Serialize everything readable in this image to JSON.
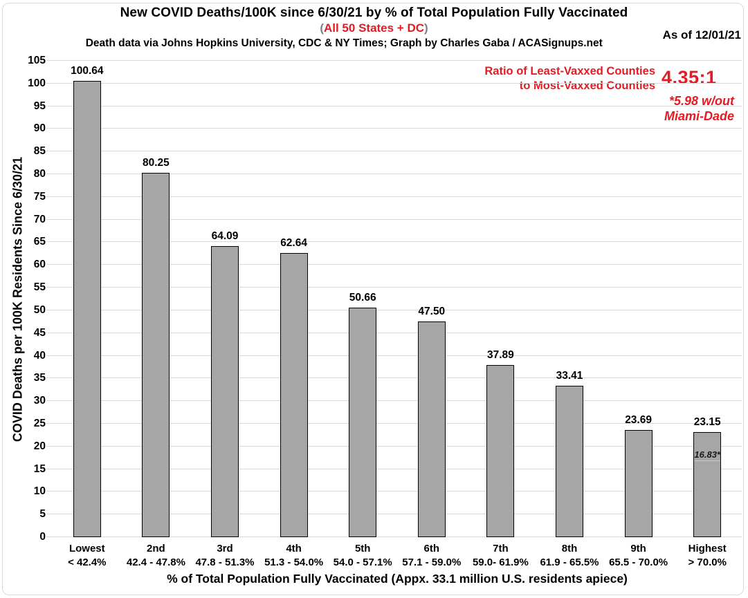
{
  "header": {
    "title": "New COVID Deaths/100K since 6/30/21 by % of Total Population Fully Vaccinated",
    "subtitle_open": "(",
    "subtitle": "All 50 States + DC",
    "subtitle_close": ")",
    "source": "Death data via Johns Hopkins University, CDC & NY Times; Graph by Charles Gaba / ACASignups.net",
    "as_of": "As of 12/01/21"
  },
  "annotation": {
    "line1": "Ratio of Least-Vaxxed Counties",
    "line2": "to Most-Vaxxed Counties",
    "value": "4.35:1",
    "footnote1": "*5.98 w/out",
    "footnote2": "Miami-Dade"
  },
  "chart_data": {
    "type": "bar",
    "title": "New COVID Deaths/100K since 6/30/21 by % of Total Population Fully Vaccinated",
    "subtitle": "All 50 States + DC",
    "categories": [
      "Lowest",
      "2nd",
      "3rd",
      "4th",
      "5th",
      "6th",
      "7th",
      "8th",
      "9th",
      "Highest"
    ],
    "category_ranges": [
      "< 42.4%",
      "42.4 - 47.8%",
      "47.8 - 51.3%",
      "51.3 - 54.0%",
      "54.0 - 57.1%",
      "57.1 - 59.0%",
      "59.0- 61.9%",
      "61.9 - 65.5%",
      "65.5 - 70.0%",
      "> 70.0%"
    ],
    "values": [
      100.64,
      80.25,
      64.09,
      62.64,
      50.66,
      47.5,
      37.89,
      33.41,
      23.69,
      23.15
    ],
    "bar_labels": [
      "100.64",
      "80.25",
      "64.09",
      "62.64",
      "50.66",
      "47.50",
      "37.89",
      "33.41",
      "23.69",
      "23.15"
    ],
    "special_marker": {
      "bar_index": 9,
      "value": 16.83,
      "label": "16.83*"
    },
    "xlabel": "% of Total Population Fully Vaccinated (Appx. 33.1 million U.S. residents apiece)",
    "ylabel": "COVID Deaths per 100K Residents Since 6/30/21",
    "ylim": [
      0,
      105
    ],
    "ytick_step": 5,
    "grid": true,
    "legend": "none",
    "colors": {
      "bar_fill": "#a6a6a6",
      "bar_border": "#000000",
      "grid": "#d9d9d9",
      "accent_red": "#e31b23",
      "paren_gray": "#7f7f7f",
      "text": "#000000"
    }
  }
}
